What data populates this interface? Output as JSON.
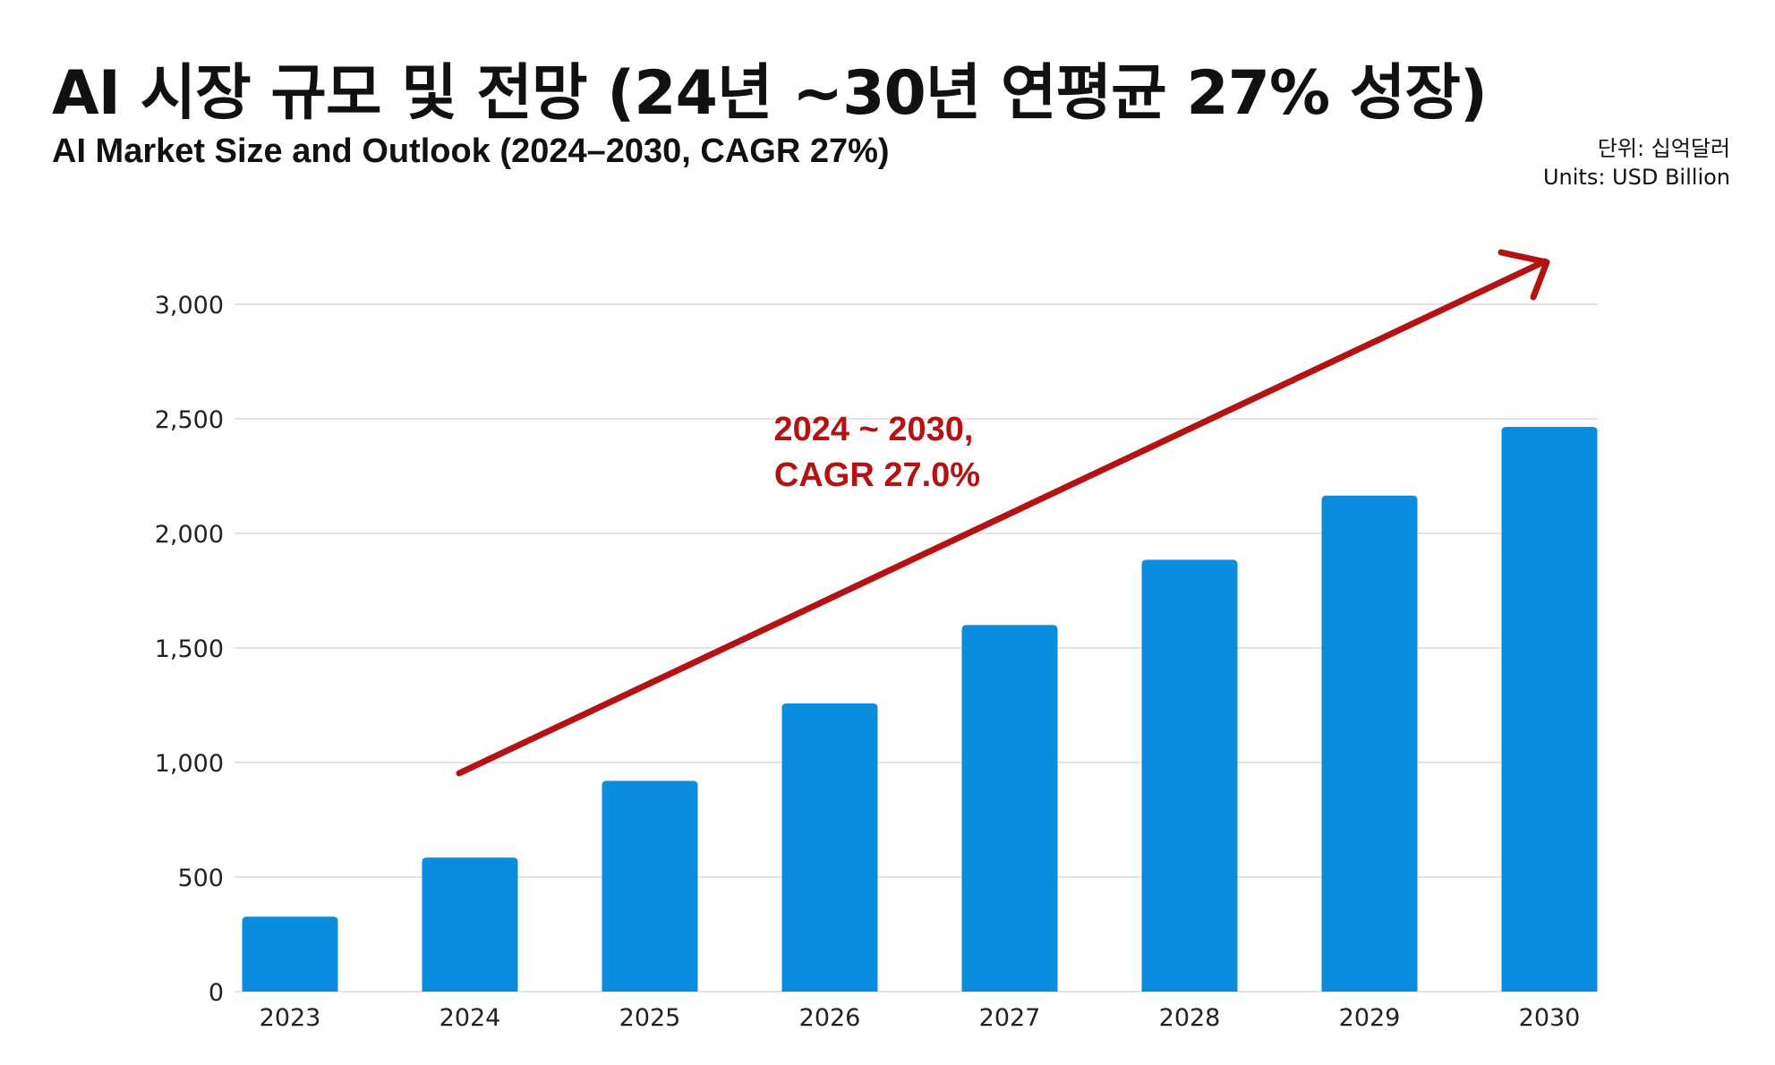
{
  "header": {
    "title": "AI 시장 규모 및 전망 (24년 ~30년 연평균 27% 성장)",
    "subtitle": "AI Market Size and Outlook (2024–2030, CAGR 27%)",
    "units_ko": "단위: 십억달러",
    "units_en": "Units: USD Billion"
  },
  "colors": {
    "bar": "#0a8ddf",
    "arrow": "#b31313",
    "grid": "#dddddd"
  },
  "chart_data": {
    "type": "bar",
    "title": "AI 시장 규모 및 전망 (24년 ~30년 연평균 27% 성장)",
    "subtitle": "AI Market Size and Outlook (2024–2030, CAGR 27%)",
    "xlabel": "",
    "ylabel": "",
    "categories": [
      "2023",
      "2024",
      "2025",
      "2026",
      "2027",
      "2028",
      "2029",
      "2030"
    ],
    "values": [
      327,
      585,
      920,
      1258,
      1600,
      1885,
      2165,
      2465
    ],
    "ylim": [
      0,
      3000
    ],
    "yticks": [
      0,
      500,
      1000,
      1500,
      2000,
      2500,
      3000
    ],
    "ytick_labels": [
      "0",
      "500",
      "1,000",
      "1,500",
      "2,000",
      "2,500",
      "3,000"
    ],
    "grid": true,
    "annotation": {
      "lines": [
        "2024 ~ 2030,",
        "CAGR 27.0%"
      ],
      "arrow_from": "2024",
      "arrow_to": "beyond 2030"
    }
  }
}
